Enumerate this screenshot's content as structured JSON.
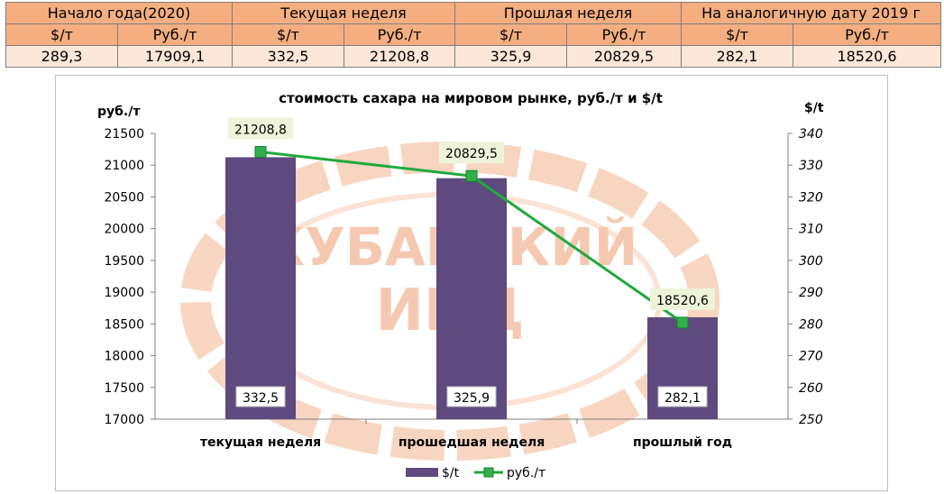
{
  "header_table": {
    "periods": [
      "Начало года(2020)",
      "Текущая неделя",
      "Прошлая неделя",
      "На аналогичную дату 2019 г"
    ],
    "units": [
      "$/т",
      "Руб./т",
      "$/т",
      "Руб./т",
      "$/т",
      "Руб./т",
      "$/т",
      "Руб./т"
    ],
    "values": [
      "289,3",
      "17909,1",
      "332,5",
      "21208,8",
      "325,9",
      "20829,5",
      "282,1",
      "18520,6"
    ]
  },
  "watermark": {
    "line1": "КУБАНСКИЙ",
    "line2": "ИКЦ"
  },
  "chart_data": {
    "type": "bar",
    "title": "стоимость сахара на мировом рынке, руб./т и $/t",
    "ylabel": "руб./т",
    "y2label": "$/t",
    "categories": [
      "текущая  неделя",
      "прошедшая неделя",
      "прошлый год"
    ],
    "ylim": [
      17000,
      21500
    ],
    "yticks": [
      17000,
      17500,
      18000,
      18500,
      19000,
      19500,
      20000,
      20500,
      21000,
      21500
    ],
    "y2lim": [
      250,
      340
    ],
    "y2ticks": [
      250,
      260,
      270,
      280,
      290,
      300,
      310,
      320,
      330,
      340
    ],
    "series": [
      {
        "name": "$/t",
        "type": "bar",
        "axis": "right",
        "color": "#5e4a7e",
        "values": [
          332.5,
          325.9,
          282.1
        ],
        "labels": [
          "332,5",
          "325,9",
          "282,1"
        ]
      },
      {
        "name": "руб./т",
        "type": "line",
        "axis": "left",
        "color": "#1faa3c",
        "marker_color": "#2fb04a",
        "values": [
          21208.8,
          20829.5,
          18520.6
        ],
        "labels": [
          "21208,8",
          "20829,5",
          "18520,6"
        ]
      }
    ],
    "legend_position": "bottom-center",
    "grid": false
  }
}
